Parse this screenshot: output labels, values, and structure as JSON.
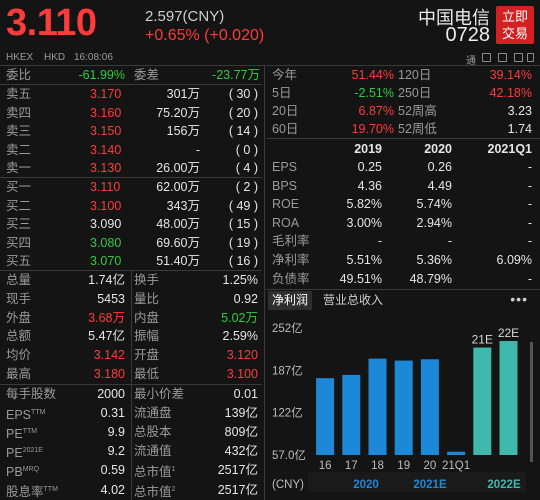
{
  "quote": {
    "price": "3.110",
    "cny_price": "2.597(CNY)",
    "change": "+0.65% (+0.020)",
    "name": "中国电信",
    "code": "0728",
    "trade_button": "立即\n交易",
    "trade_line1": "立即",
    "trade_line2": "交易",
    "market": "HKEX",
    "currency": "HKD",
    "time": "16:08:06",
    "indicator": "通"
  },
  "top_row": {
    "weibi_label": "委比",
    "weibi_value": "-61.99%",
    "weicha_label": "委差",
    "weicha_value": "-23.77万"
  },
  "order_book": [
    {
      "label": "卖五",
      "price": "3.170",
      "volume": "301万",
      "orders": "( 30 )",
      "color": "red"
    },
    {
      "label": "卖四",
      "price": "3.160",
      "volume": "75.20万",
      "orders": "( 20 )",
      "color": "red"
    },
    {
      "label": "卖三",
      "price": "3.150",
      "volume": "156万",
      "orders": "( 14 )",
      "color": "red"
    },
    {
      "label": "卖二",
      "price": "3.140",
      "volume": "-",
      "orders": "( 0 )",
      "color": "red"
    },
    {
      "label": "卖一",
      "price": "3.130",
      "volume": "26.00万",
      "orders": "( 4 )",
      "color": "red"
    },
    {
      "label": "买一",
      "price": "3.110",
      "volume": "62.00万",
      "orders": "( 2 )",
      "color": "red"
    },
    {
      "label": "买二",
      "price": "3.100",
      "volume": "343万",
      "orders": "( 49 )",
      "color": "red"
    },
    {
      "label": "买三",
      "price": "3.090",
      "volume": "48.00万",
      "orders": "( 15 )",
      "color": "white"
    },
    {
      "label": "买四",
      "price": "3.080",
      "volume": "69.60万",
      "orders": "( 19 )",
      "color": "green"
    },
    {
      "label": "买五",
      "price": "3.070",
      "volume": "51.40万",
      "orders": "( 16 )",
      "color": "green"
    }
  ],
  "stats": [
    {
      "l1": "总量",
      "v1": "1.74亿",
      "c1": "white",
      "l2": "换手",
      "v2": "1.25%",
      "c2": "white"
    },
    {
      "l1": "现手",
      "v1": "5453",
      "c1": "white",
      "l2": "量比",
      "v2": "0.92",
      "c2": "white"
    },
    {
      "l1": "外盘",
      "v1": "3.68万",
      "c1": "red",
      "l2": "内盘",
      "v2": "5.02万",
      "c2": "green"
    },
    {
      "l1": "总额",
      "v1": "5.47亿",
      "c1": "white",
      "l2": "振幅",
      "v2": "2.59%",
      "c2": "white"
    },
    {
      "l1": "均价",
      "v1": "3.142",
      "c1": "red",
      "l2": "开盘",
      "v2": "3.120",
      "c2": "red"
    },
    {
      "l1": "最高",
      "v1": "3.180",
      "c1": "red",
      "l2": "最低",
      "v2": "3.100",
      "c2": "red"
    }
  ],
  "fundamentals": [
    {
      "l1": "每手股数",
      "v1": "2000",
      "l2": "最小价差",
      "v2": "0.01"
    },
    {
      "l1": "EPS",
      "s1": "TTM",
      "v1": "0.31",
      "l2": "流通盘",
      "v2": "139亿"
    },
    {
      "l1": "PE",
      "s1": "TTM",
      "v1": "9.9",
      "l2": "总股本",
      "v2": "809亿"
    },
    {
      "l1": "PE",
      "s1": "2021E",
      "v1": "9.2",
      "l2": "流通值",
      "v2": "432亿"
    },
    {
      "l1": "PB",
      "s1": "MRQ",
      "v1": "0.59",
      "l2": "总市值",
      "s2": "1",
      "v2": "2517亿"
    },
    {
      "l1": "股息率",
      "s1": "TTM",
      "v1": "4.02",
      "l2": "总市值",
      "s2": "2",
      "v2": "2517亿"
    }
  ],
  "performance": [
    {
      "l1": "今年",
      "v1": "51.44%",
      "c1": "red",
      "l2": "120日",
      "v2": "39.14%",
      "c2": "red"
    },
    {
      "l1": "5日",
      "v1": "-2.51%",
      "c1": "green",
      "l2": "250日",
      "v2": "42.18%",
      "c2": "red"
    },
    {
      "l1": "20日",
      "v1": "6.87%",
      "c1": "red",
      "l2": "52周高",
      "v2": "3.23",
      "c2": "white"
    },
    {
      "l1": "60日",
      "v1": "19.70%",
      "c1": "red",
      "l2": "52周低",
      "v2": "1.74",
      "c2": "white"
    }
  ],
  "financials": {
    "columns": [
      "2019",
      "2020",
      "2021Q1"
    ],
    "rows": [
      {
        "label": "EPS",
        "values": [
          "0.25",
          "0.26",
          "-"
        ]
      },
      {
        "label": "BPS",
        "values": [
          "4.36",
          "4.49",
          "-"
        ]
      },
      {
        "label": "ROE",
        "values": [
          "5.82%",
          "5.74%",
          "-"
        ]
      },
      {
        "label": "ROA",
        "values": [
          "3.00%",
          "2.94%",
          "-"
        ]
      },
      {
        "label": "毛利率",
        "values": [
          "-",
          "-",
          "-"
        ]
      },
      {
        "label": "净利率",
        "values": [
          "5.51%",
          "5.36%",
          "6.09%"
        ]
      },
      {
        "label": "负债率",
        "values": [
          "49.51%",
          "48.79%",
          "-"
        ]
      }
    ]
  },
  "tabs": {
    "net_profit": "净利润",
    "revenue": "营业总收入",
    "more": "•••"
  },
  "chart_data": {
    "type": "bar",
    "categories": [
      "16",
      "17",
      "18",
      "19",
      "20",
      "21Q1",
      "21E",
      "22E"
    ],
    "values": [
      175,
      180,
      205,
      202,
      204,
      62,
      222,
      232
    ],
    "estimate_labels": [
      "",
      "",
      "",
      "",
      "",
      "",
      "21E",
      "22E"
    ],
    "y_ticks": [
      "252亿",
      "187亿",
      "122亿",
      "57.0亿"
    ],
    "y_tick_values": [
      252,
      187,
      122,
      57
    ],
    "ylim": [
      57,
      252
    ],
    "bar_colors": [
      "#1e88d8",
      "#1e88d8",
      "#1e88d8",
      "#1e88d8",
      "#1e88d8",
      "#1e88d8",
      "#3fb8ae",
      "#3fb8ae"
    ],
    "x_groups": [
      "(CNY)",
      "2020",
      "2021E",
      "2022E"
    ],
    "grid": false
  }
}
